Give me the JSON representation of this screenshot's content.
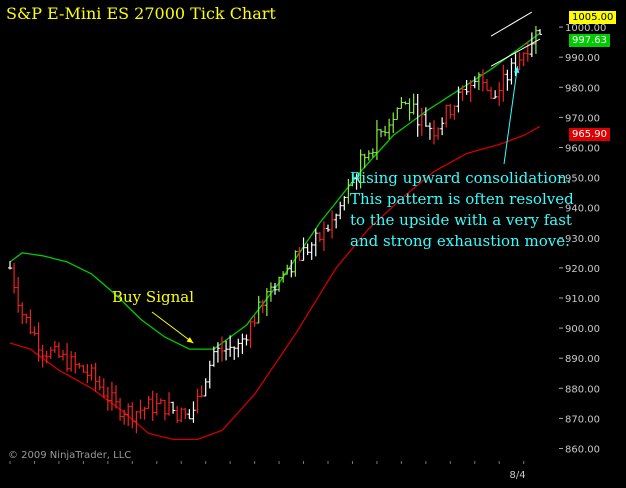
{
  "title": "S&P E-Mini ES 27000 Tick Chart",
  "copyright": "© 2009 NinjaTrader, LLC",
  "buy_signal_label": "Buy Signal",
  "annotation_lines": [
    "Rising upward consolidation.",
    "This pattern is often resolved",
    "to the upside with a very fast",
    "and strong exhaustion move."
  ],
  "price_tags": {
    "last": "1005.00",
    "green_ma": "997.63",
    "red_ma": "965.90"
  },
  "colors": {
    "background": "#000000",
    "up_bar": "#88ee44",
    "down_bar": "#ee2222",
    "neutral_bar": "#ffffff",
    "fast_ma": "#00cc00",
    "slow_ma": "#cc0000",
    "title": "#ffff00",
    "annotation": "#33ffff"
  },
  "chart_data": {
    "type": "line",
    "title": "S&P E-Mini ES 27000 Tick Chart",
    "ylim": [
      857,
      1008
    ],
    "y_ticks": [
      "1000.00",
      "990.00",
      "980.00",
      "970.00",
      "960.00",
      "950.00",
      "940.00",
      "930.00",
      "920.00",
      "910.00",
      "900.00",
      "890.00",
      "880.00",
      "870.00",
      "860.00"
    ],
    "x_tick_labels": [
      {
        "bar_index": 124,
        "label": "8/4"
      }
    ],
    "bar_count": 131,
    "grid": false,
    "series": [
      {
        "role": "price_bars",
        "anchors": [
          [
            0,
            920
          ],
          [
            3,
            905
          ],
          [
            8,
            893
          ],
          [
            14,
            889
          ],
          [
            20,
            884
          ],
          [
            26,
            874
          ],
          [
            30,
            872
          ],
          [
            34,
            874
          ],
          [
            38,
            874
          ],
          [
            44,
            870
          ],
          [
            46,
            876
          ],
          [
            50,
            892
          ],
          [
            56,
            894
          ],
          [
            64,
            913
          ],
          [
            70,
            923
          ],
          [
            76,
            930
          ],
          [
            80,
            937
          ],
          [
            86,
            955
          ],
          [
            90,
            963
          ],
          [
            96,
            975
          ],
          [
            104,
            966
          ],
          [
            112,
            980
          ],
          [
            116,
            984
          ],
          [
            118,
            975
          ],
          [
            124,
            988
          ],
          [
            130,
            1000
          ]
        ]
      },
      {
        "role": "fast_ma",
        "anchors": [
          [
            0,
            922
          ],
          [
            3,
            925
          ],
          [
            8,
            924
          ],
          [
            14,
            922
          ],
          [
            20,
            918
          ],
          [
            26,
            911
          ],
          [
            32,
            903
          ],
          [
            38,
            897
          ],
          [
            44,
            893
          ],
          [
            50,
            893
          ],
          [
            58,
            901
          ],
          [
            66,
            915
          ],
          [
            76,
            935
          ],
          [
            86,
            952
          ],
          [
            94,
            964
          ],
          [
            102,
            972
          ],
          [
            110,
            979
          ],
          [
            118,
            986
          ],
          [
            124,
            992
          ],
          [
            130,
            998
          ]
        ]
      },
      {
        "role": "slow_ma",
        "anchors": [
          [
            0,
            895
          ],
          [
            5,
            893
          ],
          [
            12,
            886
          ],
          [
            20,
            880
          ],
          [
            28,
            872
          ],
          [
            34,
            865
          ],
          [
            40,
            863
          ],
          [
            46,
            863
          ],
          [
            52,
            866
          ],
          [
            60,
            878
          ],
          [
            70,
            898
          ],
          [
            80,
            920
          ],
          [
            88,
            933
          ],
          [
            96,
            943
          ],
          [
            104,
            952
          ],
          [
            112,
            958
          ],
          [
            120,
            961
          ],
          [
            126,
            964
          ],
          [
            130,
            967
          ]
        ]
      }
    ],
    "buy_signal_bar": 44,
    "upper_channel": [
      [
        118,
        997
      ],
      [
        128,
        1005
      ]
    ],
    "lower_channel": [
      [
        118,
        987
      ],
      [
        130,
        996
      ]
    ]
  }
}
